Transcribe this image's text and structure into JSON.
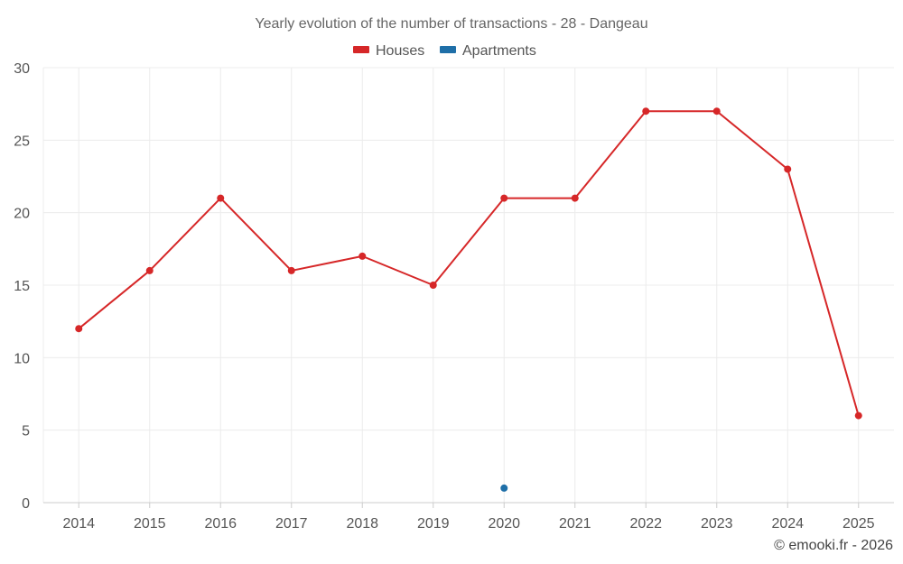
{
  "chart_data": {
    "type": "line",
    "title": "Yearly evolution of the number of transactions - 28 - Dangeau",
    "categories": [
      "2014",
      "2015",
      "2016",
      "2017",
      "2018",
      "2019",
      "2020",
      "2021",
      "2022",
      "2023",
      "2024",
      "2025"
    ],
    "series": [
      {
        "name": "Houses",
        "color": "#d62728",
        "values": [
          12,
          16,
          21,
          16,
          17,
          15,
          21,
          21,
          27,
          27,
          23,
          6
        ]
      },
      {
        "name": "Apartments",
        "color": "#1f6fa8",
        "values": [
          null,
          null,
          null,
          null,
          null,
          null,
          1,
          null,
          null,
          null,
          null,
          null
        ]
      }
    ],
    "ylim": [
      0,
      30
    ],
    "yticks": [
      0,
      5,
      10,
      15,
      20,
      25,
      30
    ],
    "xlabel": "",
    "ylabel": "",
    "grid": true,
    "legend_position": "top-center"
  },
  "credit": "© emooki.fr - 2026"
}
